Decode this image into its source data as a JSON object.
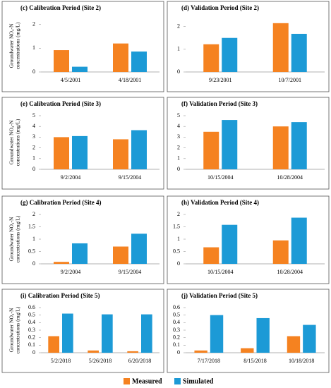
{
  "chart_data": [
    {
      "type": "bar",
      "title": "(c) Calibration Period (Site 2)",
      "ylabel": [
        "Groundwater NO₃-N",
        "concentrations (mg/L)"
      ],
      "categories": [
        "4/5/2001",
        "4/18/2001"
      ],
      "series": [
        {
          "name": "Measured",
          "color": "#f58220",
          "values": [
            0.92,
            1.2
          ]
        },
        {
          "name": "Simulated",
          "color": "#1c9ad6",
          "values": [
            0.22,
            0.86
          ]
        }
      ],
      "ylim": [
        0,
        2.2
      ],
      "yticks": [
        0,
        1,
        2
      ]
    },
    {
      "type": "bar",
      "title": "(d) Validation Period (Site 2)",
      "categories": [
        "9/23/2001",
        "10/7/2001"
      ],
      "series": [
        {
          "name": "Measured",
          "color": "#f58220",
          "values": [
            1.22,
            2.15
          ]
        },
        {
          "name": "Simulated",
          "color": "#1c9ad6",
          "values": [
            1.5,
            1.68
          ]
        }
      ],
      "ylim": [
        0,
        2.3
      ],
      "yticks": [
        0,
        1,
        2
      ]
    },
    {
      "type": "bar",
      "title": "(e) Calibration Period (Site 3)",
      "ylabel": [
        "Groundwater NO₃-N",
        "concentrations (mg/L)"
      ],
      "categories": [
        "9/2/2004",
        "9/15/2004"
      ],
      "series": [
        {
          "name": "Measured",
          "color": "#f58220",
          "values": [
            3.0,
            2.8
          ]
        },
        {
          "name": "Simulated",
          "color": "#1c9ad6",
          "values": [
            3.1,
            3.65
          ]
        }
      ],
      "ylim": [
        0,
        5
      ],
      "yticks": [
        0,
        1,
        2,
        3,
        4,
        5
      ]
    },
    {
      "type": "bar",
      "title": "(f) Validation Period (Site 3)",
      "categories": [
        "10/15/2004",
        "10/28/2004"
      ],
      "series": [
        {
          "name": "Measured",
          "color": "#f58220",
          "values": [
            3.5,
            4.0
          ]
        },
        {
          "name": "Simulated",
          "color": "#1c9ad6",
          "values": [
            4.6,
            4.4
          ]
        }
      ],
      "ylim": [
        0,
        5
      ],
      "yticks": [
        0,
        1,
        2,
        3,
        4,
        5
      ]
    },
    {
      "type": "bar",
      "title": "(g) Calibration Period (Site 4)",
      "ylabel": [
        "Groundwater NO₃-N",
        "concentrations (mg/L)"
      ],
      "categories": [
        "9/2/2004",
        "9/15/2004"
      ],
      "series": [
        {
          "name": "Measured",
          "color": "#f58220",
          "values": [
            0.08,
            0.7
          ]
        },
        {
          "name": "Simulated",
          "color": "#1c9ad6",
          "values": [
            0.83,
            1.22
          ]
        }
      ],
      "ylim": [
        0,
        2
      ],
      "yticks": [
        0,
        0.5,
        1,
        1.5,
        2
      ]
    },
    {
      "type": "bar",
      "title": "(h) Validation Period (Site 4)",
      "categories": [
        "10/15/2004",
        "10/28/2004"
      ],
      "series": [
        {
          "name": "Measured",
          "color": "#f58220",
          "values": [
            0.67,
            0.95
          ]
        },
        {
          "name": "Simulated",
          "color": "#1c9ad6",
          "values": [
            1.58,
            1.87
          ]
        }
      ],
      "ylim": [
        0,
        2
      ],
      "yticks": [
        0,
        0.5,
        1,
        1.5,
        2
      ]
    },
    {
      "type": "bar",
      "title": "(i) Calibration Period (Site 5)",
      "ylabel": [
        "Groundwater NO₃-N",
        "concentrations (mg/L)"
      ],
      "categories": [
        "5/2/2018",
        "5/26/2018",
        "6/20/2018"
      ],
      "series": [
        {
          "name": "Measured",
          "color": "#f58220",
          "values": [
            0.22,
            0.03,
            0.02
          ]
        },
        {
          "name": "Simulated",
          "color": "#1c9ad6",
          "values": [
            0.52,
            0.51,
            0.51
          ]
        }
      ],
      "ylim": [
        0,
        0.6
      ],
      "yticks": [
        0,
        0.1,
        0.2,
        0.3,
        0.4,
        0.5,
        0.6
      ]
    },
    {
      "type": "bar",
      "title": "(j) Validation Period (Site 5)",
      "categories": [
        "7/17/2018",
        "8/15/2018",
        "10/18/2018"
      ],
      "series": [
        {
          "name": "Measured",
          "color": "#f58220",
          "values": [
            0.03,
            0.06,
            0.22
          ]
        },
        {
          "name": "Simulated",
          "color": "#1c9ad6",
          "values": [
            0.5,
            0.46,
            0.37
          ]
        }
      ],
      "ylim": [
        0,
        0.6
      ],
      "yticks": [
        0,
        0.1,
        0.2,
        0.3,
        0.4,
        0.5,
        0.6
      ]
    }
  ]
}
